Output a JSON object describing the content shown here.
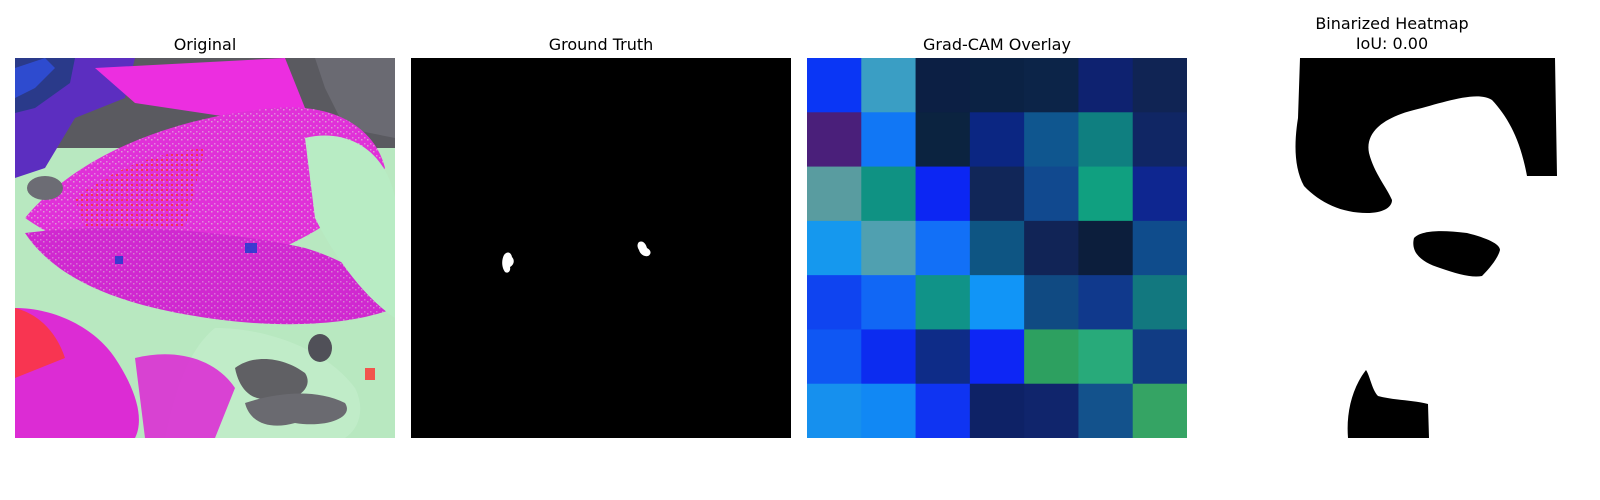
{
  "panels": [
    {
      "title": "Original"
    },
    {
      "title": "Ground Truth"
    },
    {
      "title": "Grad-CAM Overlay"
    },
    {
      "title": "Binarized Heatmap",
      "subtitle": "IoU: 0.00"
    }
  ],
  "gradcam_colors": [
    [
      "#0a36f5",
      "#3a9ec4",
      "#0c1f44",
      "#0b2244",
      "#0c2448",
      "#0e2270",
      "#102454"
    ],
    [
      "#4a1f7a",
      "#1177f5",
      "#0b2340",
      "#0b2682",
      "#0f568f",
      "#0f7f80",
      "#102664"
    ],
    [
      "#599ca0",
      "#0f9283",
      "#0c26f3",
      "#112658",
      "#11498f",
      "#10a080",
      "#0e2690"
    ],
    [
      "#1598ee",
      "#50a0b0",
      "#1270f7",
      "#0e5583",
      "#112456",
      "#0c1e3c",
      "#0f4c8c"
    ],
    [
      "#0f44f0",
      "#1167f5",
      "#109388",
      "#1195f7",
      "#104a82",
      "#10398c",
      "#12787f"
    ],
    [
      "#0f57f3",
      "#0c2cf0",
      "#0e2c88",
      "#0d26f5",
      "#2da060",
      "#28aa7a",
      "#113c84"
    ],
    [
      "#1690ee",
      "#1188f4",
      "#0f34f2",
      "#0e2266",
      "#10256c",
      "#13528c",
      "#35a464"
    ]
  ]
}
